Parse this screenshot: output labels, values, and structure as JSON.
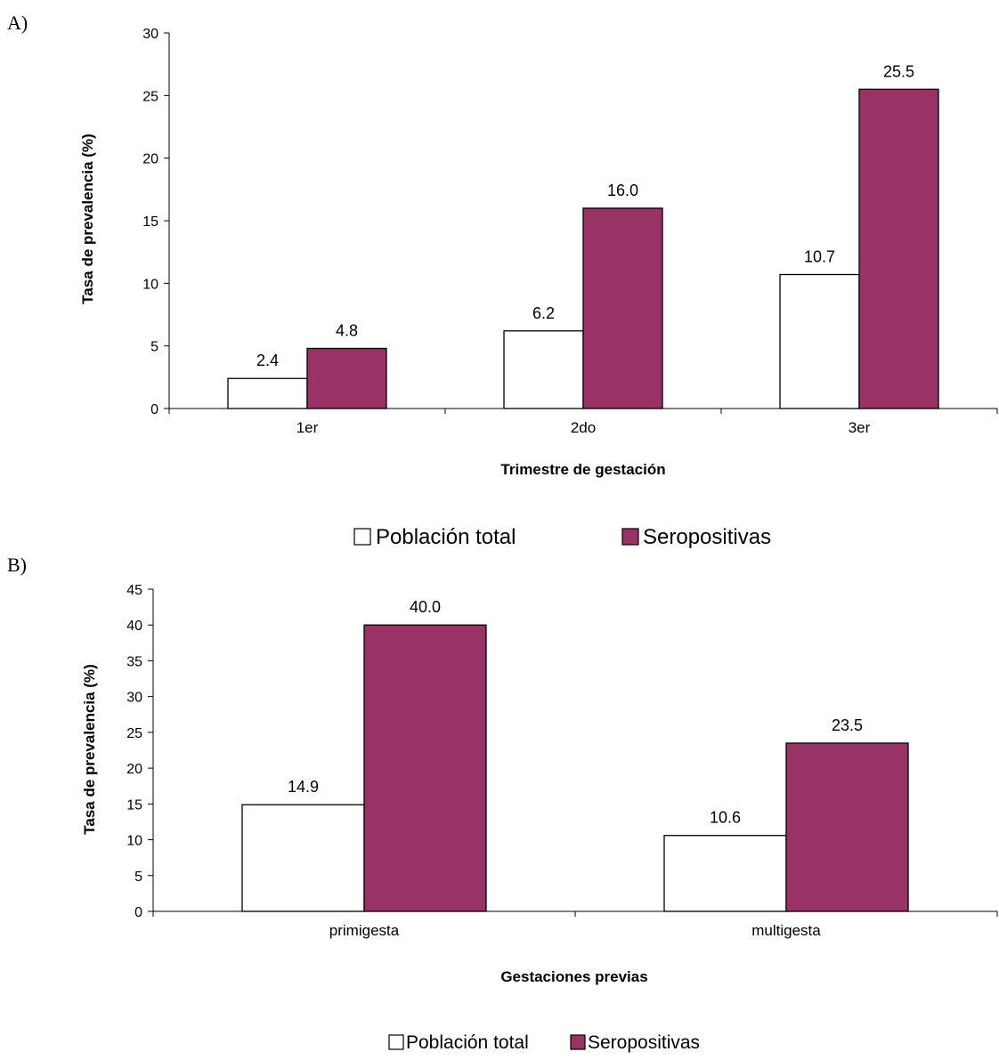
{
  "chart_data": [
    {
      "panel_label": "A)",
      "type": "bar",
      "categories": [
        "1er",
        "2do",
        "3er"
      ],
      "series": [
        {
          "name": "Población total",
          "values": [
            2.4,
            6.2,
            10.7
          ],
          "labels": [
            "2.4",
            "6.2",
            "10.7"
          ],
          "color": "#ffffff"
        },
        {
          "name": "Seropositivas",
          "values": [
            4.8,
            16.0,
            25.5
          ],
          "labels": [
            "4.8",
            "16.0",
            "25.5"
          ],
          "color": "#993366"
        }
      ],
      "xlabel": "Trimestre de gestación",
      "ylabel": "Tasa de prevalencia (%)",
      "ylim": [
        0,
        30
      ],
      "yticks": [
        0,
        5,
        10,
        15,
        20,
        25,
        30
      ],
      "grid": false,
      "legend": "bottom"
    },
    {
      "panel_label": "B)",
      "type": "bar",
      "categories": [
        "primigesta",
        "multigesta"
      ],
      "series": [
        {
          "name": "Población total",
          "values": [
            14.9,
            10.6
          ],
          "labels": [
            "14.9",
            "10.6"
          ],
          "color": "#ffffff"
        },
        {
          "name": "Seropositivas",
          "values": [
            40.0,
            23.5
          ],
          "labels": [
            "40.0",
            "23.5"
          ],
          "color": "#993366"
        }
      ],
      "xlabel": "Gestaciones previas",
      "ylabel": "Tasa de prevalencia (%)",
      "ylim": [
        0,
        45
      ],
      "yticks": [
        0,
        5,
        10,
        15,
        20,
        25,
        30,
        35,
        40,
        45
      ],
      "grid": false,
      "legend": "bottom"
    }
  ]
}
